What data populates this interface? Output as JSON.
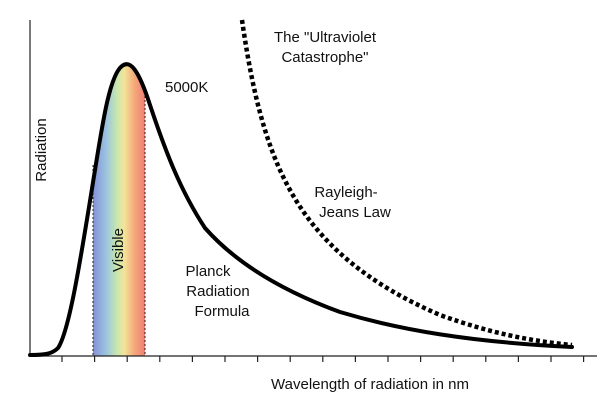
{
  "title_lines": [
    "The \"Ultraviolet",
    "Catastrophe\""
  ],
  "temperature_label": "5000K",
  "rayleigh_jeans_label": [
    "Rayleigh-",
    "Jeans Law"
  ],
  "planck_label": [
    "Planck",
    "Radiation",
    "Formula"
  ],
  "visible_label": "Visible",
  "y_axis_label": "Radiation",
  "x_axis_label": "Wavelength of radiation in nm"
}
